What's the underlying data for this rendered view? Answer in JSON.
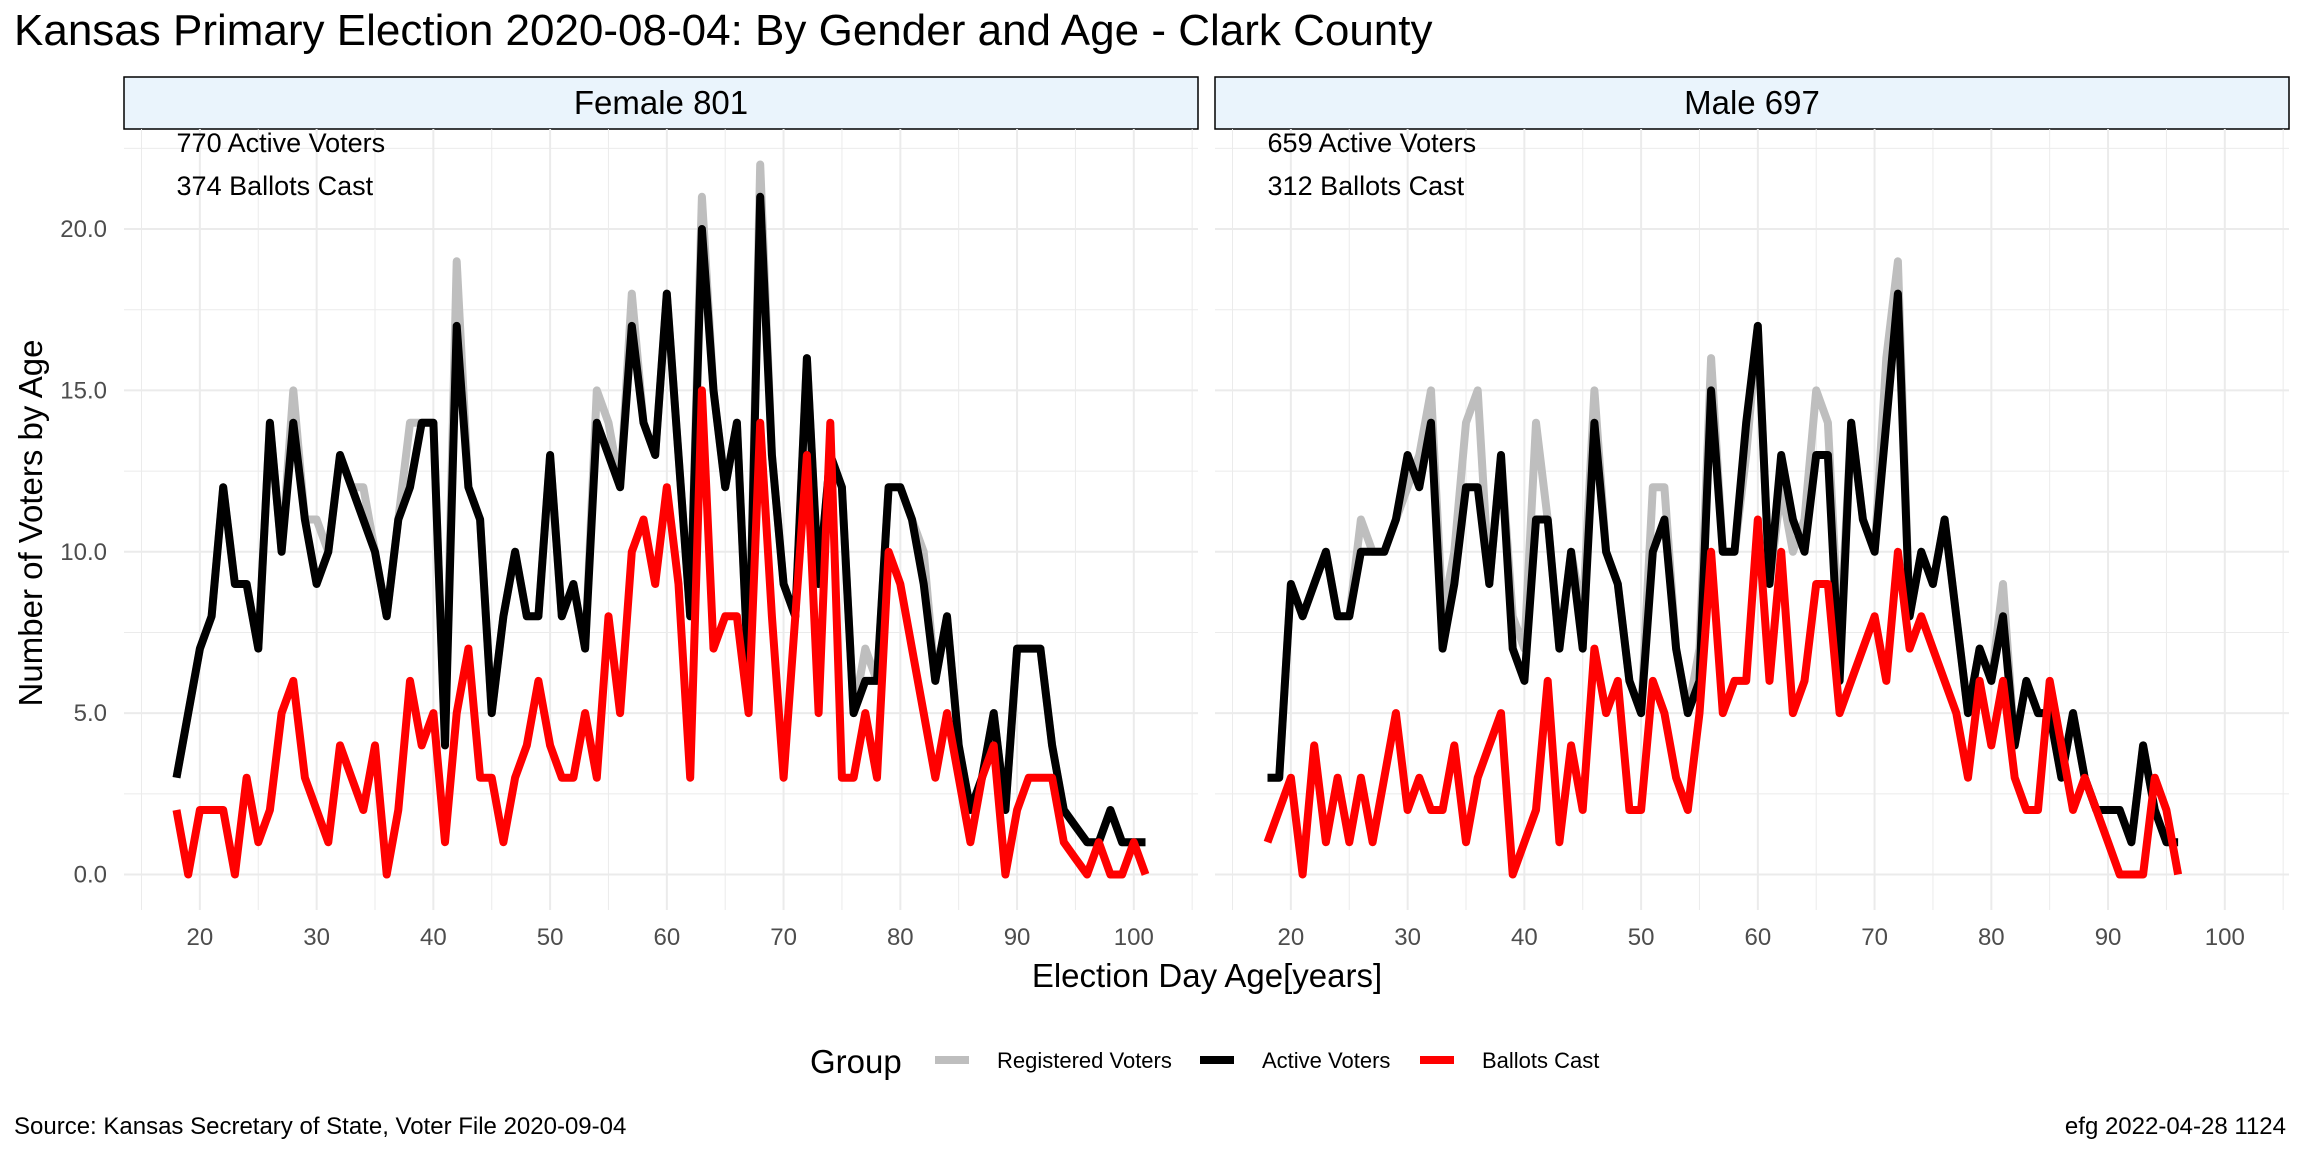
{
  "title": "Kansas Primary Election 2020-08-04:  By Gender and Age - Clark County",
  "xlabel": "Election Day Age[years]",
  "ylabel": "Number of Voters by Age",
  "caption_left": "Source:  Kansas Secretary of State, Voter File  2020-09-04",
  "caption_right": "efg 2022-04-28 1124",
  "legend": {
    "title": "Group",
    "items": [
      {
        "label": "Registered Voters",
        "color": "#BEBEBE"
      },
      {
        "label": "Active Voters",
        "color": "#000000"
      },
      {
        "label": "Ballots Cast",
        "color": "#FF0000"
      }
    ]
  },
  "colors": {
    "registered": "#BEBEBE",
    "active": "#000000",
    "ballots": "#FF0000",
    "strip_fill": "#EAF4FC",
    "grid": "#EBEBEB"
  },
  "chart_data": [
    {
      "type": "line",
      "panel": "Female 801",
      "annotations": [
        "770 Active Voters",
        "374 Ballots Cast"
      ],
      "xlim": [
        18,
        101
      ],
      "ylim": [
        0,
        22
      ],
      "x_ticks": [
        "20",
        "30",
        "40",
        "50",
        "60",
        "70",
        "80",
        "90",
        "100"
      ],
      "y_ticks": [
        "0.0",
        "5.0",
        "10.0",
        "15.0",
        "20.0"
      ],
      "x": [
        18,
        19,
        20,
        21,
        22,
        23,
        24,
        25,
        26,
        27,
        28,
        29,
        30,
        31,
        32,
        33,
        34,
        35,
        36,
        37,
        38,
        39,
        40,
        41,
        42,
        43,
        44,
        45,
        46,
        47,
        48,
        49,
        50,
        51,
        52,
        53,
        54,
        55,
        56,
        57,
        58,
        59,
        60,
        61,
        62,
        63,
        64,
        65,
        66,
        67,
        68,
        69,
        70,
        71,
        72,
        73,
        74,
        75,
        76,
        77,
        78,
        79,
        80,
        81,
        82,
        83,
        84,
        85,
        86,
        87,
        88,
        89,
        90,
        91,
        92,
        93,
        94,
        95,
        96,
        97,
        98,
        99,
        100,
        101
      ],
      "series": [
        {
          "name": "Registered Voters",
          "values": [
            3,
            5,
            7,
            8,
            12,
            9,
            9,
            7,
            14,
            10,
            15,
            11,
            11,
            10,
            13,
            12,
            12,
            10,
            8,
            11,
            14,
            14,
            14,
            4,
            19,
            12,
            11,
            5,
            8,
            10,
            8,
            8,
            13,
            8,
            9,
            7,
            15,
            14,
            12,
            18,
            14,
            13,
            18,
            13,
            8,
            21,
            15,
            12,
            14,
            6,
            22,
            13,
            9,
            8,
            16,
            9,
            13,
            12,
            5,
            7,
            6,
            12,
            12,
            11,
            10,
            6,
            8,
            4,
            2,
            3,
            5,
            2,
            7,
            7,
            7,
            4,
            2,
            1.5,
            1,
            1,
            2,
            1,
            1,
            1
          ]
        },
        {
          "name": "Active Voters",
          "values": [
            3,
            5,
            7,
            8,
            12,
            9,
            9,
            7,
            14,
            10,
            14,
            11,
            9,
            10,
            13,
            12,
            11,
            10,
            8,
            11,
            12,
            14,
            14,
            4,
            17,
            12,
            11,
            5,
            8,
            10,
            8,
            8,
            13,
            8,
            9,
            7,
            14,
            13,
            12,
            17,
            14,
            13,
            18,
            13,
            8,
            20,
            15,
            12,
            14,
            6,
            21,
            13,
            9,
            8,
            16,
            9,
            13,
            12,
            5,
            6,
            6,
            12,
            12,
            11,
            9,
            6,
            8,
            4,
            2,
            3,
            5,
            2,
            7,
            7,
            7,
            4,
            2,
            1.5,
            1,
            1,
            2,
            1,
            1,
            1
          ]
        },
        {
          "name": "Ballots Cast",
          "values": [
            2,
            0,
            2,
            2,
            2,
            0,
            3,
            1,
            2,
            5,
            6,
            3,
            2,
            1,
            4,
            3,
            2,
            4,
            0,
            2,
            6,
            4,
            5,
            1,
            5,
            7,
            3,
            3,
            1,
            3,
            4,
            6,
            4,
            3,
            3,
            5,
            3,
            8,
            5,
            10,
            11,
            9,
            12,
            9,
            3,
            15,
            7,
            8,
            8,
            5,
            14,
            8,
            3,
            8,
            13,
            5,
            14,
            3,
            3,
            5,
            3,
            10,
            9,
            7,
            5,
            3,
            5,
            3,
            1,
            3,
            4,
            0,
            2,
            3,
            3,
            3,
            1,
            0.5,
            0,
            1,
            0,
            0,
            1,
            0
          ]
        }
      ]
    },
    {
      "type": "line",
      "panel": "Male 697",
      "annotations": [
        "659 Active Voters",
        "312 Ballots Cast"
      ],
      "xlim": [
        18,
        96
      ],
      "ylim": [
        0,
        22
      ],
      "x_ticks": [
        "20",
        "30",
        "40",
        "50",
        "60",
        "70",
        "80",
        "90",
        "100"
      ],
      "y_ticks": [
        "0.0",
        "5.0",
        "10.0",
        "15.0",
        "20.0"
      ],
      "x": [
        18,
        19,
        20,
        21,
        22,
        23,
        24,
        25,
        26,
        27,
        28,
        29,
        30,
        31,
        32,
        33,
        34,
        35,
        36,
        37,
        38,
        39,
        40,
        41,
        42,
        43,
        44,
        45,
        46,
        47,
        48,
        49,
        50,
        51,
        52,
        53,
        54,
        55,
        56,
        57,
        58,
        59,
        60,
        61,
        62,
        63,
        64,
        65,
        66,
        67,
        68,
        69,
        70,
        71,
        72,
        73,
        74,
        75,
        76,
        77,
        78,
        79,
        80,
        81,
        82,
        83,
        84,
        85,
        86,
        87,
        88,
        89,
        90,
        91,
        92,
        93,
        94,
        95,
        96
      ],
      "series": [
        {
          "name": "Registered Voters",
          "values": [
            3,
            3,
            9,
            8,
            9,
            10,
            8,
            8,
            11,
            10,
            10,
            11,
            12,
            13,
            15,
            8,
            10,
            14,
            15,
            9,
            13,
            8,
            7,
            14,
            11,
            7,
            10,
            8,
            15,
            10,
            9,
            6,
            5,
            12,
            12,
            7,
            5,
            7,
            16,
            10,
            10,
            13,
            17,
            9,
            12,
            10,
            11,
            15,
            14,
            7,
            14,
            11,
            10,
            16,
            19,
            8,
            10,
            9,
            11,
            8,
            5,
            7,
            6,
            9,
            4,
            6,
            5,
            5,
            3,
            5,
            3,
            2,
            2,
            2,
            1,
            4,
            2,
            1,
            1
          ]
        },
        {
          "name": "Active Voters",
          "values": [
            3,
            3,
            9,
            8,
            9,
            10,
            8,
            8,
            10,
            10,
            10,
            11,
            13,
            12,
            14,
            7,
            9,
            12,
            12,
            9,
            13,
            7,
            6,
            11,
            11,
            7,
            10,
            7,
            14,
            10,
            9,
            6,
            5,
            10,
            11,
            7,
            5,
            6,
            15,
            10,
            10,
            14,
            17,
            9,
            13,
            11,
            10,
            13,
            13,
            6,
            14,
            11,
            10,
            14,
            18,
            8,
            10,
            9,
            11,
            8,
            5,
            7,
            6,
            8,
            4,
            6,
            5,
            5,
            3,
            5,
            3,
            2,
            2,
            2,
            1,
            4,
            2,
            1,
            1
          ]
        },
        {
          "name": "Ballots Cast",
          "values": [
            1,
            2,
            3,
            0,
            4,
            1,
            3,
            1,
            3,
            1,
            3,
            5,
            2,
            3,
            2,
            2,
            4,
            1,
            3,
            4,
            5,
            0,
            1,
            2,
            6,
            1,
            4,
            2,
            7,
            5,
            6,
            2,
            2,
            6,
            5,
            3,
            2,
            5,
            10,
            5,
            6,
            6,
            11,
            6,
            10,
            5,
            6,
            9,
            9,
            5,
            6,
            7,
            8,
            6,
            10,
            7,
            8,
            7,
            6,
            5,
            3,
            6,
            4,
            6,
            3,
            2,
            2,
            6,
            4,
            2,
            3,
            2,
            1,
            0,
            0,
            0,
            3,
            2,
            0
          ]
        }
      ]
    }
  ]
}
